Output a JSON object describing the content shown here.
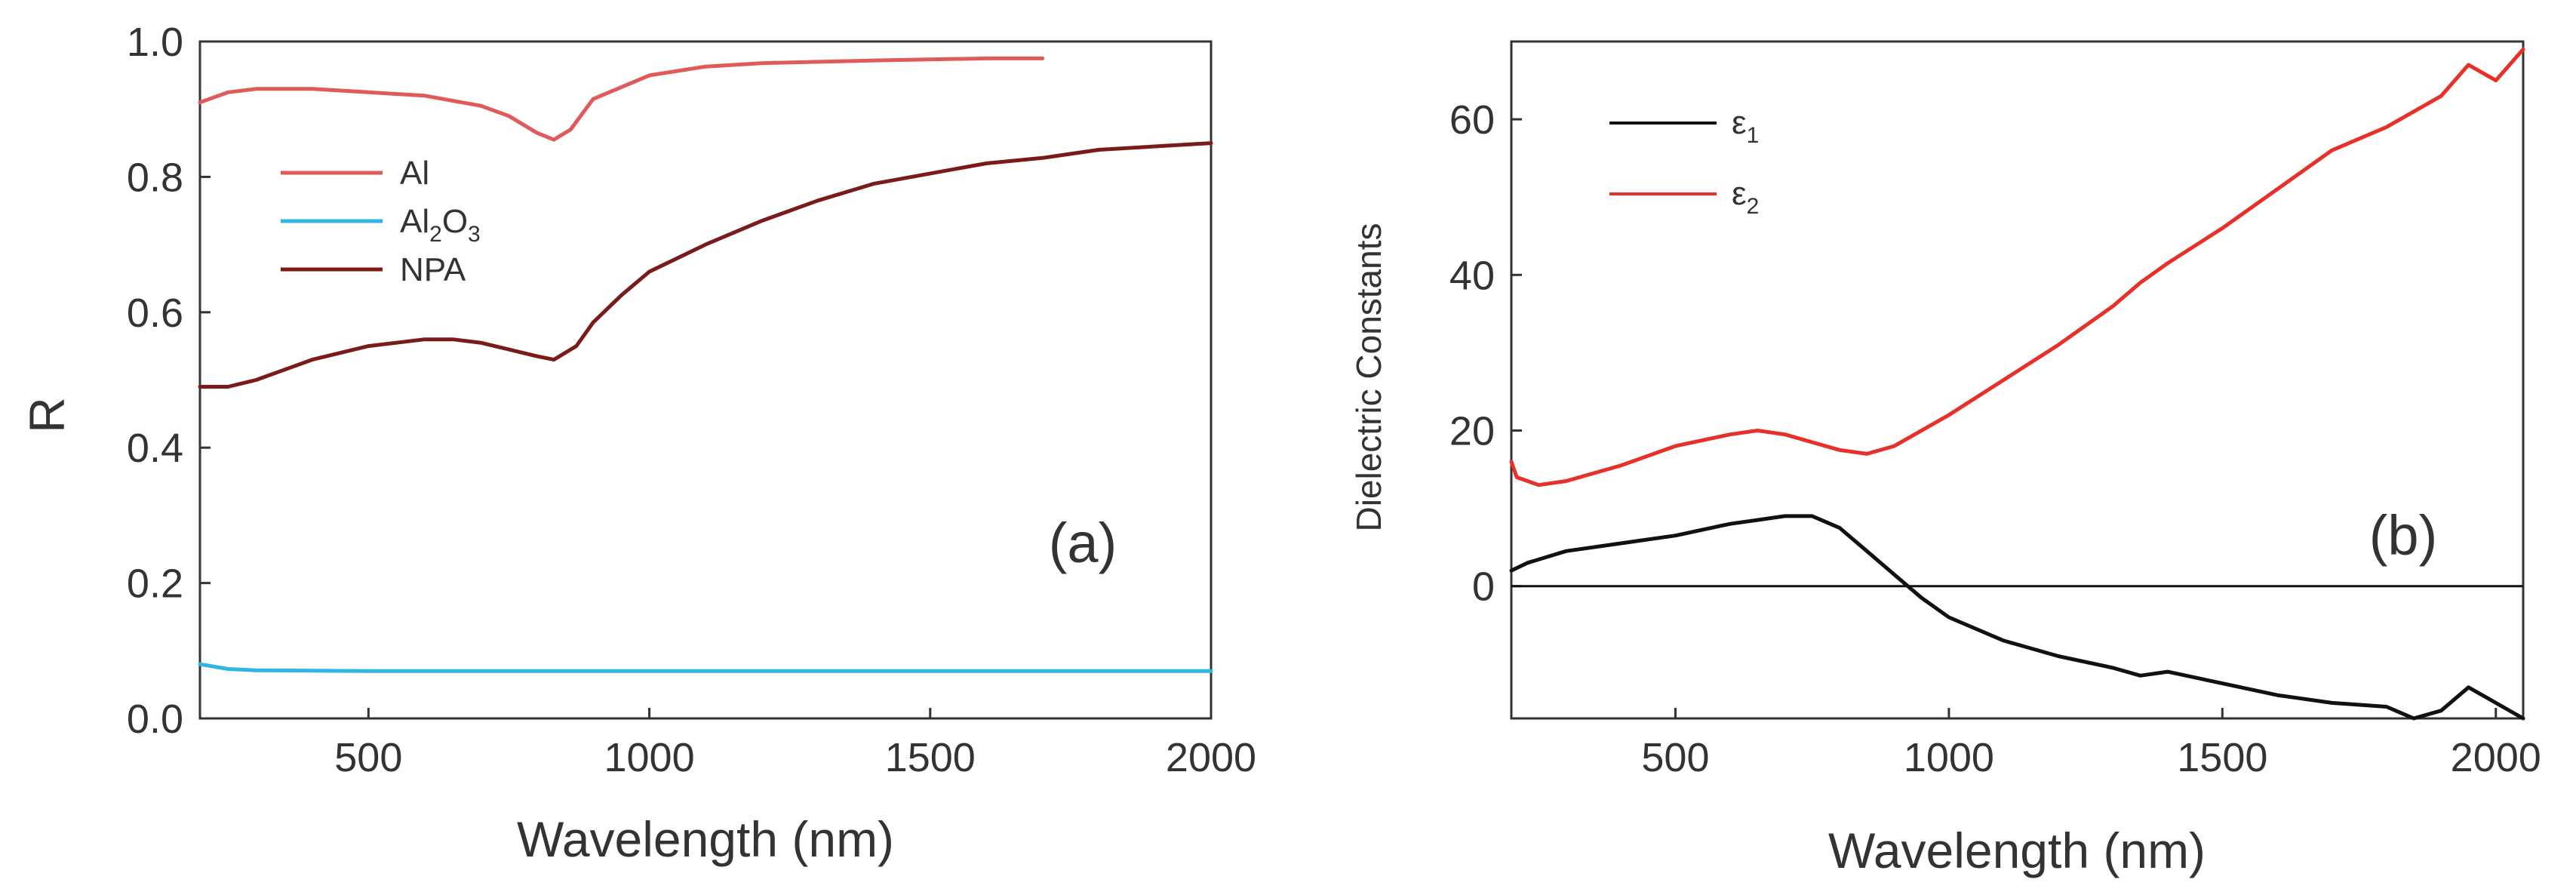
{
  "chart_data": [
    {
      "type": "line",
      "panel_label": "(a)",
      "xlabel": "Wavelength (nm)",
      "ylabel": "R",
      "xlim": [
        200,
        2000
      ],
      "ylim": [
        0,
        1.0
      ],
      "x_ticks": [
        500,
        1000,
        1500,
        2000
      ],
      "y_ticks": [
        0.0,
        0.2,
        0.4,
        0.6,
        0.8,
        1.0
      ],
      "y_tick_labels": [
        "0.0",
        "0.2",
        "0.4",
        "0.6",
        "0.8",
        "1.0"
      ],
      "legend_position": "top-left",
      "series": [
        {
          "name": "Al",
          "color": "#e05a5a",
          "x": [
            200,
            250,
            300,
            400,
            500,
            600,
            700,
            750,
            800,
            830,
            860,
            900,
            1000,
            1100,
            1200,
            1400,
            1600,
            1700
          ],
          "y": [
            0.91,
            0.925,
            0.93,
            0.93,
            0.925,
            0.92,
            0.905,
            0.89,
            0.865,
            0.855,
            0.87,
            0.915,
            0.95,
            0.963,
            0.968,
            0.972,
            0.975,
            0.975
          ]
        },
        {
          "name": "Al2O3",
          "label_main": "Al",
          "label_sub1": "2",
          "label_mid": "O",
          "label_sub2": "3",
          "color": "#2fb6e6",
          "x": [
            200,
            250,
            300,
            500,
            1000,
            1500,
            2000
          ],
          "y": [
            0.08,
            0.073,
            0.071,
            0.07,
            0.07,
            0.07,
            0.07
          ]
        },
        {
          "name": "NPA",
          "color": "#7a1a1a",
          "x": [
            200,
            250,
            300,
            400,
            500,
            600,
            650,
            700,
            750,
            800,
            830,
            870,
            900,
            950,
            1000,
            1100,
            1200,
            1300,
            1400,
            1500,
            1600,
            1700,
            1800,
            1900,
            2000
          ],
          "y": [
            0.49,
            0.49,
            0.5,
            0.53,
            0.55,
            0.56,
            0.56,
            0.555,
            0.545,
            0.535,
            0.53,
            0.55,
            0.585,
            0.625,
            0.66,
            0.7,
            0.735,
            0.765,
            0.79,
            0.805,
            0.82,
            0.828,
            0.84,
            0.845,
            0.85
          ]
        }
      ]
    },
    {
      "type": "line",
      "panel_label": "(b)",
      "xlabel": "Wavelength (nm)",
      "ylabel": "Dielectric Constants",
      "xlim": [
        200,
        2050
      ],
      "ylim": [
        -17,
        70
      ],
      "x_ticks": [
        500,
        1000,
        1500,
        2000
      ],
      "y_ticks": [
        0,
        20,
        40,
        60
      ],
      "y_tick_labels": [
        "0",
        "20",
        "40",
        "60"
      ],
      "zero_line": true,
      "legend_position": "top-left",
      "series": [
        {
          "name": "ε1",
          "label_main": "ε",
          "label_sub": "1",
          "color": "#111111",
          "x": [
            200,
            230,
            300,
            400,
            500,
            600,
            650,
            700,
            750,
            800,
            850,
            900,
            950,
            1000,
            1100,
            1200,
            1300,
            1350,
            1400,
            1500,
            1600,
            1700,
            1800,
            1850,
            1900,
            1950,
            2000,
            2050
          ],
          "y": [
            2,
            3,
            4.5,
            5.5,
            6.5,
            8,
            8.5,
            9,
            9,
            7.5,
            4.5,
            1.5,
            -1.5,
            -4,
            -7,
            -9,
            -10.5,
            -11.5,
            -11,
            -12.5,
            -14,
            -15,
            -15.5,
            -17,
            -16,
            -13,
            -15,
            -17
          ]
        },
        {
          "name": "ε2",
          "label_main": "ε",
          "label_sub": "2",
          "color": "#e8302a",
          "x": [
            200,
            210,
            250,
            300,
            400,
            500,
            600,
            650,
            700,
            750,
            800,
            850,
            900,
            1000,
            1100,
            1200,
            1300,
            1350,
            1400,
            1500,
            1600,
            1700,
            1800,
            1900,
            1950,
            2000,
            2050
          ],
          "y": [
            16,
            14,
            13,
            13.5,
            15.5,
            18,
            19.5,
            20,
            19.5,
            18.5,
            17.5,
            17,
            18,
            22,
            26.5,
            31,
            36,
            39,
            41.5,
            46,
            51,
            56,
            59,
            63,
            67,
            65,
            69
          ]
        }
      ]
    }
  ]
}
